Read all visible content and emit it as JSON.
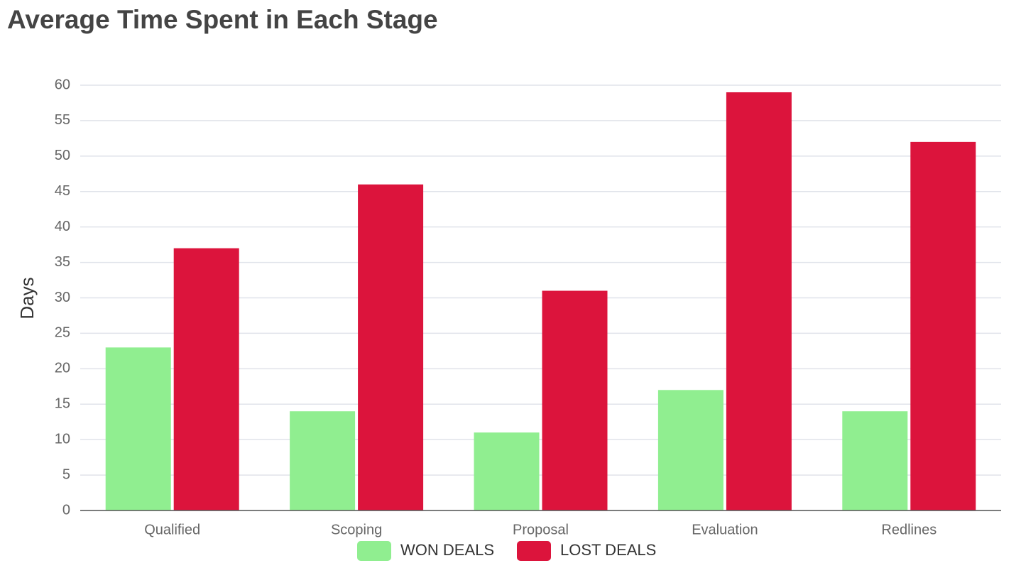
{
  "chart_data": {
    "type": "bar",
    "title": "Average Time Spent in Each Stage",
    "y_label": "Days",
    "categories": [
      "Qualified",
      "Scoping",
      "Proposal",
      "Evaluation",
      "Redlines"
    ],
    "series": [
      {
        "name": "WON DEALS",
        "color": "#90ee90",
        "values": [
          23,
          14,
          11,
          17,
          14
        ]
      },
      {
        "name": "LOST DEALS",
        "color": "#dc143c",
        "values": [
          37,
          46,
          31,
          59,
          52
        ]
      }
    ],
    "ylim": [
      0,
      60
    ],
    "yticks": [
      0,
      5,
      10,
      15,
      20,
      25,
      30,
      35,
      40,
      45,
      50,
      55,
      60
    ],
    "grid": true,
    "legend": "bottom"
  }
}
